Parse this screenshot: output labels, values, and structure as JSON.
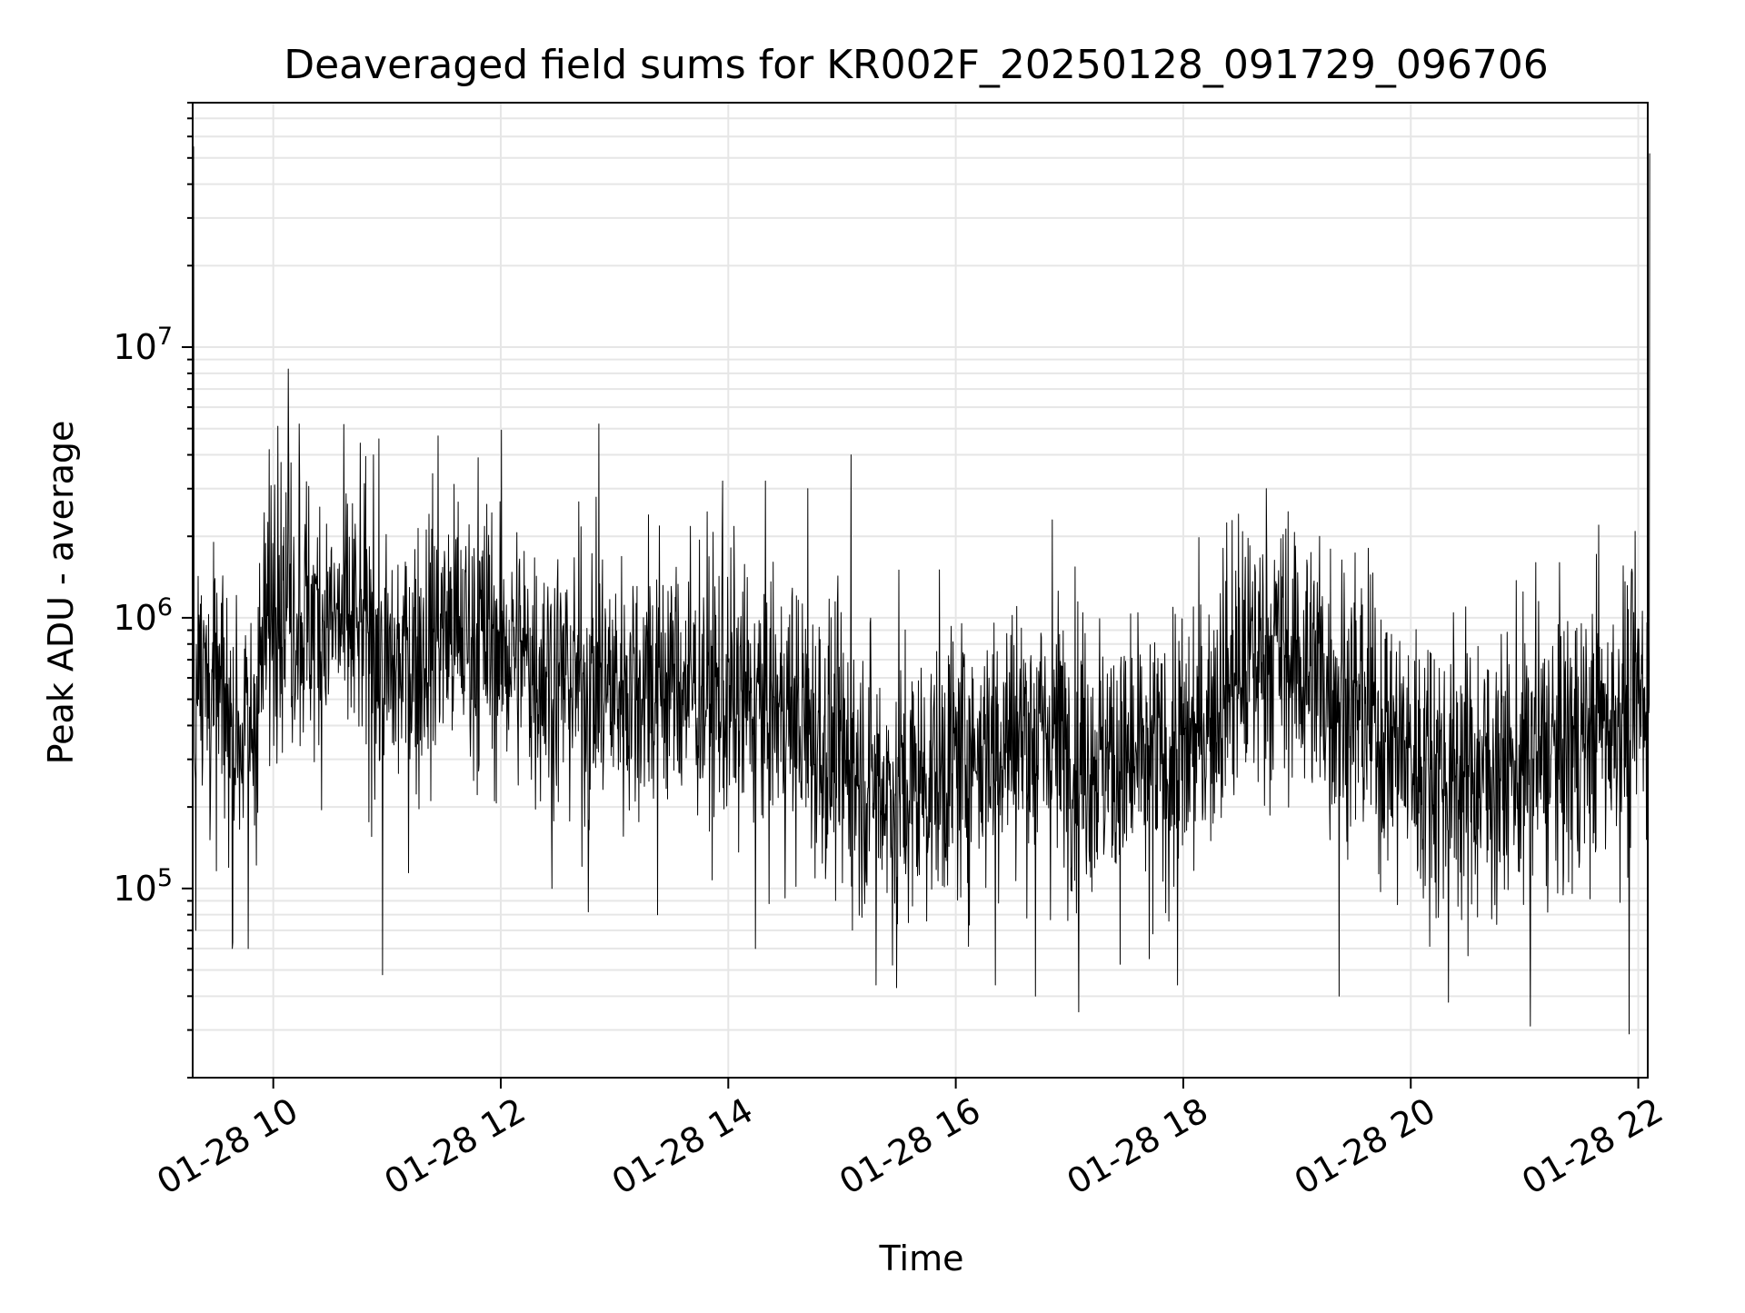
{
  "chart_data": {
    "type": "line",
    "title": "Deaveraged field sums for KR002F_20250128_091729_096706",
    "xlabel": "Time",
    "ylabel": "Peak ADU - average",
    "x_axis": {
      "type": "time",
      "start": "2025-01-28 09:17:29",
      "end": "2025-01-28 22:05:00",
      "ticks": [
        "01-28 10",
        "01-28 12",
        "01-28 14",
        "01-28 16",
        "01-28 18",
        "01-28 20",
        "01-28 22"
      ],
      "tick_hours": [
        10,
        12,
        14,
        16,
        18,
        20,
        22
      ],
      "tick_rotation": 30
    },
    "y_axis": {
      "type": "log",
      "ylim": [
        20000,
        80000000
      ],
      "ticks": [
        {
          "value": 100000,
          "base": "10",
          "exp": "5"
        },
        {
          "value": 1000000,
          "base": "10",
          "exp": "6"
        },
        {
          "value": 10000000,
          "base": "10",
          "exp": "7"
        }
      ]
    },
    "grid": true,
    "series": [
      {
        "color": "#000000",
        "line_width": 1,
        "envelope": [
          {
            "hour": 9.29,
            "value": 700000
          },
          {
            "hour": 9.5,
            "value": 500000
          },
          {
            "hour": 9.8,
            "value": 350000
          },
          {
            "hour": 10.0,
            "value": 1300000
          },
          {
            "hour": 10.3,
            "value": 1000000
          },
          {
            "hour": 10.8,
            "value": 900000
          },
          {
            "hour": 11.0,
            "value": 600000
          },
          {
            "hour": 11.5,
            "value": 900000
          },
          {
            "hour": 12.0,
            "value": 800000
          },
          {
            "hour": 12.5,
            "value": 600000
          },
          {
            "hour": 13.0,
            "value": 550000
          },
          {
            "hour": 13.5,
            "value": 600000
          },
          {
            "hour": 14.0,
            "value": 500000
          },
          {
            "hour": 14.5,
            "value": 450000
          },
          {
            "hour": 15.0,
            "value": 300000
          },
          {
            "hour": 15.5,
            "value": 220000
          },
          {
            "hour": 16.0,
            "value": 300000
          },
          {
            "hour": 16.5,
            "value": 380000
          },
          {
            "hour": 17.0,
            "value": 350000
          },
          {
            "hour": 17.5,
            "value": 280000
          },
          {
            "hour": 18.0,
            "value": 300000
          },
          {
            "hour": 18.4,
            "value": 600000
          },
          {
            "hour": 18.8,
            "value": 800000
          },
          {
            "hour": 19.2,
            "value": 600000
          },
          {
            "hour": 19.6,
            "value": 450000
          },
          {
            "hour": 20.0,
            "value": 300000
          },
          {
            "hour": 20.5,
            "value": 260000
          },
          {
            "hour": 21.0,
            "value": 280000
          },
          {
            "hour": 21.5,
            "value": 350000
          },
          {
            "hour": 22.0,
            "value": 500000
          },
          {
            "hour": 22.08,
            "value": 600000
          }
        ],
        "spikes_up": [
          {
            "hour": 9.3,
            "value": 55000000
          },
          {
            "hour": 10.04,
            "value": 5100000
          },
          {
            "hour": 10.13,
            "value": 8300000
          },
          {
            "hour": 10.23,
            "value": 5200000
          },
          {
            "hour": 10.88,
            "value": 4000000
          },
          {
            "hour": 11.45,
            "value": 4700000
          },
          {
            "hour": 11.8,
            "value": 3900000
          },
          {
            "hour": 12.86,
            "value": 5200000
          },
          {
            "hour": 13.3,
            "value": 2400000
          },
          {
            "hour": 13.95,
            "value": 3200000
          },
          {
            "hour": 14.7,
            "value": 3000000
          },
          {
            "hour": 15.08,
            "value": 4000000
          },
          {
            "hour": 15.5,
            "value": 1500000
          },
          {
            "hour": 16.85,
            "value": 2300000
          },
          {
            "hour": 18.73,
            "value": 3000000
          },
          {
            "hour": 19.2,
            "value": 2000000
          },
          {
            "hour": 21.1,
            "value": 1600000
          },
          {
            "hour": 21.65,
            "value": 2200000
          },
          {
            "hour": 22.1,
            "value": 52000000
          }
        ],
        "spikes_down": [
          {
            "hour": 9.32,
            "value": 70000
          },
          {
            "hour": 9.64,
            "value": 60000
          },
          {
            "hour": 9.78,
            "value": 60000
          },
          {
            "hour": 10.96,
            "value": 48000
          },
          {
            "hour": 12.45,
            "value": 100000
          },
          {
            "hour": 12.77,
            "value": 82000
          },
          {
            "hour": 13.38,
            "value": 80000
          },
          {
            "hour": 14.24,
            "value": 60000
          },
          {
            "hour": 15.3,
            "value": 44000
          },
          {
            "hour": 15.48,
            "value": 43000
          },
          {
            "hour": 16.35,
            "value": 44000
          },
          {
            "hour": 16.7,
            "value": 40000
          },
          {
            "hour": 17.08,
            "value": 35000
          },
          {
            "hour": 17.7,
            "value": 55000
          },
          {
            "hour": 17.95,
            "value": 44000
          },
          {
            "hour": 19.37,
            "value": 40000
          },
          {
            "hour": 20.33,
            "value": 38000
          },
          {
            "hour": 21.05,
            "value": 31000
          },
          {
            "hour": 21.92,
            "value": 29000
          }
        ]
      }
    ]
  }
}
